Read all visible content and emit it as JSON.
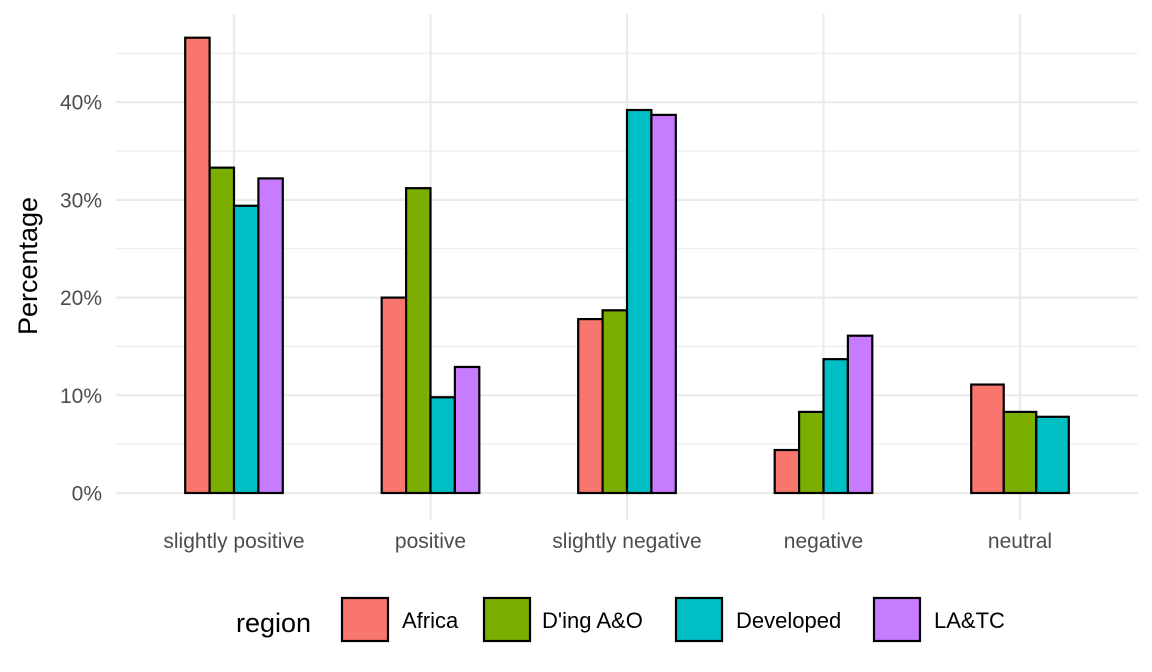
{
  "chart_data": {
    "type": "bar",
    "title": "",
    "xlabel": "",
    "ylabel": "Percentage",
    "categories": [
      "slightly positive",
      "positive",
      "slightly negative",
      "negative",
      "neutral"
    ],
    "series": [
      {
        "name": "Africa",
        "color": "#F8766D",
        "values": [
          46.6,
          20.0,
          17.8,
          4.4,
          11.1
        ]
      },
      {
        "name": "D'ing A&O",
        "color": "#7CAE00",
        "values": [
          33.3,
          31.2,
          18.7,
          8.3,
          8.3
        ]
      },
      {
        "name": "Developed",
        "color": "#00BFC4",
        "values": [
          29.4,
          9.8,
          39.2,
          13.7,
          7.8
        ]
      },
      {
        "name": "LA&TC",
        "color": "#C77CFF",
        "values": [
          32.2,
          12.9,
          38.7,
          16.1,
          null
        ]
      }
    ],
    "ylim": [
      0,
      47
    ],
    "y_ticks": [
      0,
      10,
      20,
      30,
      40
    ],
    "y_tick_labels": [
      "0%",
      "10%",
      "20%",
      "30%",
      "40%"
    ],
    "grid": true,
    "legend": {
      "title": "region",
      "position": "bottom"
    }
  }
}
